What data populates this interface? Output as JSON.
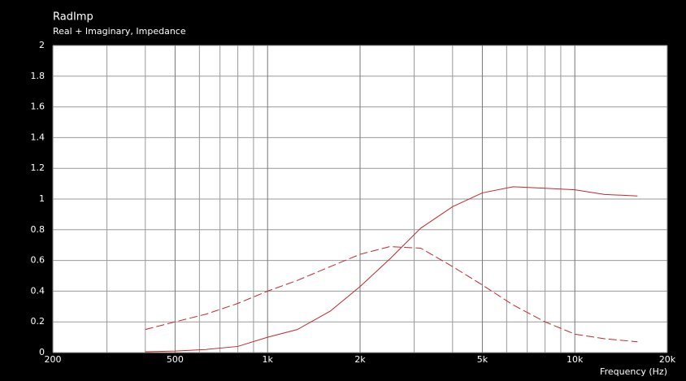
{
  "chart_data": {
    "type": "line",
    "title": "RadImp",
    "subtitle": "Real + Imaginary, Impedance",
    "x_label": "Frequency  (Hz)",
    "xscale": "log",
    "xlim": [
      200,
      20000
    ],
    "xticks": [
      200,
      500,
      {
        "value": 1000,
        "label": "1k"
      },
      {
        "value": 2000,
        "label": "2k"
      },
      {
        "value": 5000,
        "label": "5k"
      },
      {
        "value": 10000,
        "label": "10k"
      },
      {
        "value": 20000,
        "label": "20k"
      }
    ],
    "xminor": [
      300,
      400,
      600,
      700,
      800,
      900,
      3000,
      4000,
      6000,
      7000,
      8000,
      9000
    ],
    "ylim": [
      0,
      2
    ],
    "yticks": [
      0,
      0.2,
      0.4,
      0.6,
      0.8,
      1,
      1.2,
      1.4,
      1.6,
      1.8,
      2
    ],
    "grid": true,
    "x": [
      400,
      500,
      630,
      800,
      1000,
      1250,
      1600,
      2000,
      2500,
      3150,
      4000,
      5000,
      6300,
      8000,
      10000,
      12500,
      16000
    ],
    "series": [
      {
        "color": "#c0282d",
        "style": "solid",
        "values": [
          0.005,
          0.01,
          0.02,
          0.04,
          0.1,
          0.15,
          0.27,
          0.43,
          0.61,
          0.81,
          0.95,
          1.04,
          1.08,
          1.07,
          1.06,
          1.03,
          1.02
        ]
      },
      {
        "color": "#c0282d",
        "style": "dashed",
        "values": [
          0.15,
          0.2,
          0.25,
          0.32,
          0.4,
          0.47,
          0.56,
          0.64,
          0.69,
          0.68,
          0.56,
          0.44,
          0.31,
          0.2,
          0.12,
          0.09,
          0.07
        ]
      }
    ]
  }
}
